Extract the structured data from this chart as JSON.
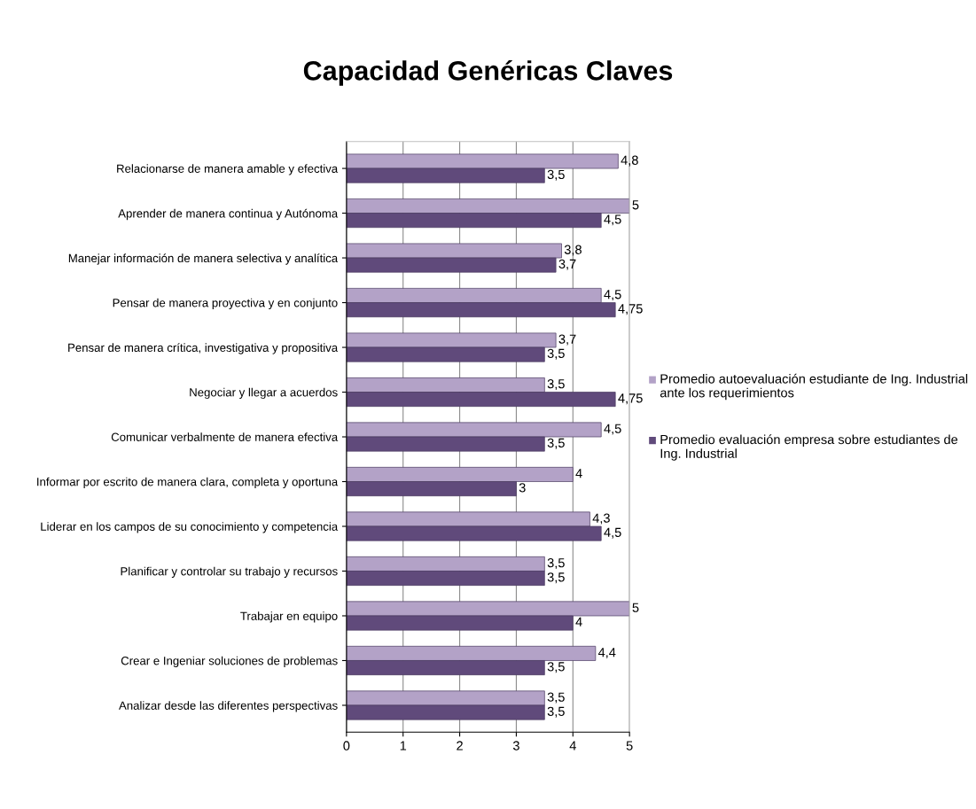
{
  "chart_data": {
    "type": "bar",
    "orientation": "horizontal",
    "title": "Capacidad Genéricas Claves",
    "categories": [
      "Relacionarse de manera amable y efectiva",
      "Aprender de manera continua y Autónoma",
      "Manejar información de manera selectiva y analítica",
      "Pensar de manera proyectiva y en conjunto",
      "Pensar de manera crítica, investigativa y propositiva",
      "Negociar y llegar a acuerdos",
      "Comunicar verbalmente de manera efectiva",
      "Informar por escrito de manera clara, completa y oportuna",
      "Liderar en los campos de su conocimiento y competencia",
      "Planificar y controlar su trabajo y recursos",
      "Trabajar en equipo",
      "Crear e Ingeniar soluciones de problemas",
      "Analizar desde las diferentes perspectivas"
    ],
    "series": [
      {
        "name": "Promedio autoevaluación estudiante de Ing. Industrial ante los requerimientos",
        "color": "#b3a2c7",
        "values": [
          4.8,
          5,
          3.8,
          4.5,
          3.7,
          3.5,
          4.5,
          4,
          4.3,
          3.5,
          5,
          4.4,
          3.5
        ],
        "value_labels": [
          "4,8",
          "5",
          "3,8",
          "4,5",
          "3,7",
          "3,5",
          "4,5",
          "4",
          "4,3",
          "3,5",
          "5",
          "4,4",
          "3,5"
        ]
      },
      {
        "name": "Promedio evaluación empresa sobre estudiantes de Ing. Industrial",
        "color": "#604a7b",
        "values": [
          3.5,
          4.5,
          3.7,
          4.75,
          3.5,
          4.75,
          3.5,
          3,
          4.5,
          3.5,
          4,
          3.5,
          3.5
        ],
        "value_labels": [
          "3,5",
          "4,5",
          "3,7",
          "4,75",
          "3,5",
          "4,75",
          "3,5",
          "3",
          "4,5",
          "3,5",
          "4",
          "3,5",
          "3,5"
        ]
      }
    ],
    "xlim": [
      0,
      5
    ],
    "xticks": [
      0,
      1,
      2,
      3,
      4,
      5
    ],
    "grid": "x",
    "legend": "right"
  }
}
